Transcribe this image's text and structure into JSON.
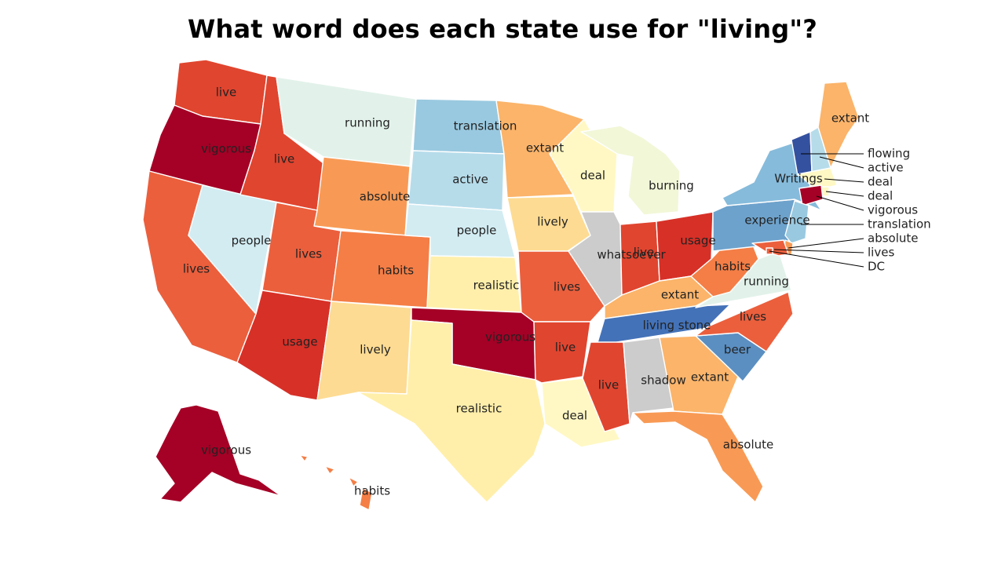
{
  "title": "What word does each state use for \"living\"?",
  "palette": {
    "vigorous": "#a50026",
    "usage": "#d73027",
    "live": "#e0452f",
    "lives": "#eb5f3d",
    "habits": "#f47e46",
    "absolute": "#f89a55",
    "extant": "#fbb46a",
    "lively": "#fddb92",
    "realistic": "#ffefaa",
    "deal": "#fff8c4",
    "burning": "#f2f7d8",
    "running": "#e2f2ea",
    "people": "#d2ecf2",
    "active": "#b6dcea",
    "translation": "#99c9e0",
    "writings": "#86bbdb",
    "experience": "#6da2cc",
    "beer": "#5b8fc2",
    "living_stone": "#4472b8",
    "flowing": "#3451a0"
  },
  "states": [
    {
      "id": "WA",
      "word": "live"
    },
    {
      "id": "OR",
      "word": "vigorous"
    },
    {
      "id": "CA",
      "word": "lives"
    },
    {
      "id": "NV",
      "word": "people"
    },
    {
      "id": "ID",
      "word": "live"
    },
    {
      "id": "MT",
      "word": "running"
    },
    {
      "id": "WY",
      "word": "absolute"
    },
    {
      "id": "UT",
      "word": "lives"
    },
    {
      "id": "AZ",
      "word": "usage"
    },
    {
      "id": "CO",
      "word": "habits"
    },
    {
      "id": "NM",
      "word": "lively"
    },
    {
      "id": "ND",
      "word": "translation"
    },
    {
      "id": "SD",
      "word": "active"
    },
    {
      "id": "NE",
      "word": "people"
    },
    {
      "id": "KS",
      "word": "realistic"
    },
    {
      "id": "OK",
      "word": "vigorous"
    },
    {
      "id": "TX",
      "word": "realistic"
    },
    {
      "id": "MN",
      "word": "extant"
    },
    {
      "id": "IA",
      "word": "lively"
    },
    {
      "id": "MO",
      "word": "lives"
    },
    {
      "id": "AR",
      "word": "live"
    },
    {
      "id": "LA",
      "word": "deal"
    },
    {
      "id": "WI",
      "word": "deal"
    },
    {
      "id": "MI",
      "word": "burning"
    },
    {
      "id": "IL",
      "word": "whatsoever"
    },
    {
      "id": "IN",
      "word": "live"
    },
    {
      "id": "OH",
      "word": "usage"
    },
    {
      "id": "KY",
      "word": "extant"
    },
    {
      "id": "TN",
      "word": "living stone"
    },
    {
      "id": "MS",
      "word": "live"
    },
    {
      "id": "AL",
      "word": "shadow"
    },
    {
      "id": "GA",
      "word": "extant"
    },
    {
      "id": "FL",
      "word": "absolute"
    },
    {
      "id": "SC",
      "word": "beer"
    },
    {
      "id": "NC",
      "word": "lives"
    },
    {
      "id": "VA",
      "word": "running"
    },
    {
      "id": "WV",
      "word": "habits"
    },
    {
      "id": "PA",
      "word": "experience"
    },
    {
      "id": "NY",
      "word": "Writings"
    },
    {
      "id": "VT",
      "word": "flowing"
    },
    {
      "id": "NH",
      "word": "active"
    },
    {
      "id": "ME",
      "word": "extant"
    },
    {
      "id": "MA",
      "word": "deal"
    },
    {
      "id": "RI",
      "word": "deal"
    },
    {
      "id": "CT",
      "word": "vigorous"
    },
    {
      "id": "NJ",
      "word": "translation"
    },
    {
      "id": "DE",
      "word": "absolute"
    },
    {
      "id": "MD",
      "word": "lives"
    },
    {
      "id": "DC",
      "word": "DC"
    },
    {
      "id": "AK",
      "word": "vigorous"
    },
    {
      "id": "HI",
      "word": "habits"
    }
  ],
  "callouts": [
    "flowing",
    "active",
    "deal",
    "deal",
    "vigorous",
    "translation",
    "absolute",
    "lives",
    "DC"
  ]
}
